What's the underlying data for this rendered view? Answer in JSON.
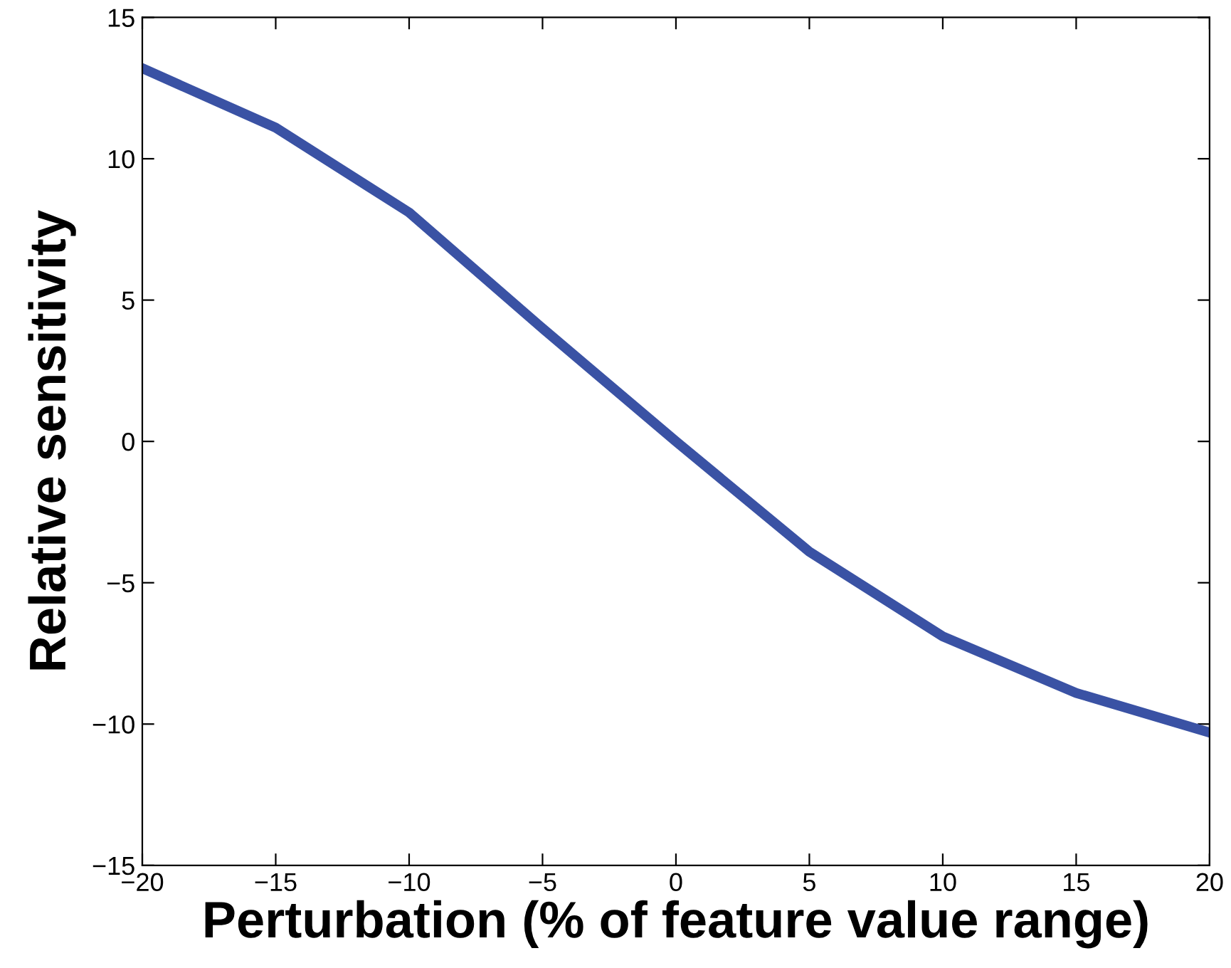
{
  "chart_data": {
    "type": "line",
    "xlabel": "Perturbation (% of feature value range)",
    "ylabel": "Relative sensitivity",
    "x": [
      -20,
      -15,
      -10,
      -5,
      0,
      5,
      10,
      15,
      20
    ],
    "series": [
      {
        "color": "#3a52a4",
        "values": [
          13.2,
          11.1,
          8.1,
          4.0,
          0,
          -3.9,
          -6.9,
          -8.9,
          -10.3
        ]
      }
    ],
    "xlim": [
      -20,
      20
    ],
    "ylim": [
      -15,
      15
    ],
    "xticks": [
      {
        "value": -20,
        "label": "−20"
      },
      {
        "value": -15,
        "label": "−15"
      },
      {
        "value": -10,
        "label": "−10"
      },
      {
        "value": -5,
        "label": "−5"
      },
      0,
      5,
      10,
      15,
      20
    ],
    "yticks": [
      {
        "value": -15,
        "label": "−15"
      },
      {
        "value": -10,
        "label": "−10"
      },
      {
        "value": -5,
        "label": "−5"
      },
      0,
      5,
      10,
      15
    ],
    "grid": false,
    "legend": false,
    "marker": "none",
    "line_style": "solid"
  }
}
